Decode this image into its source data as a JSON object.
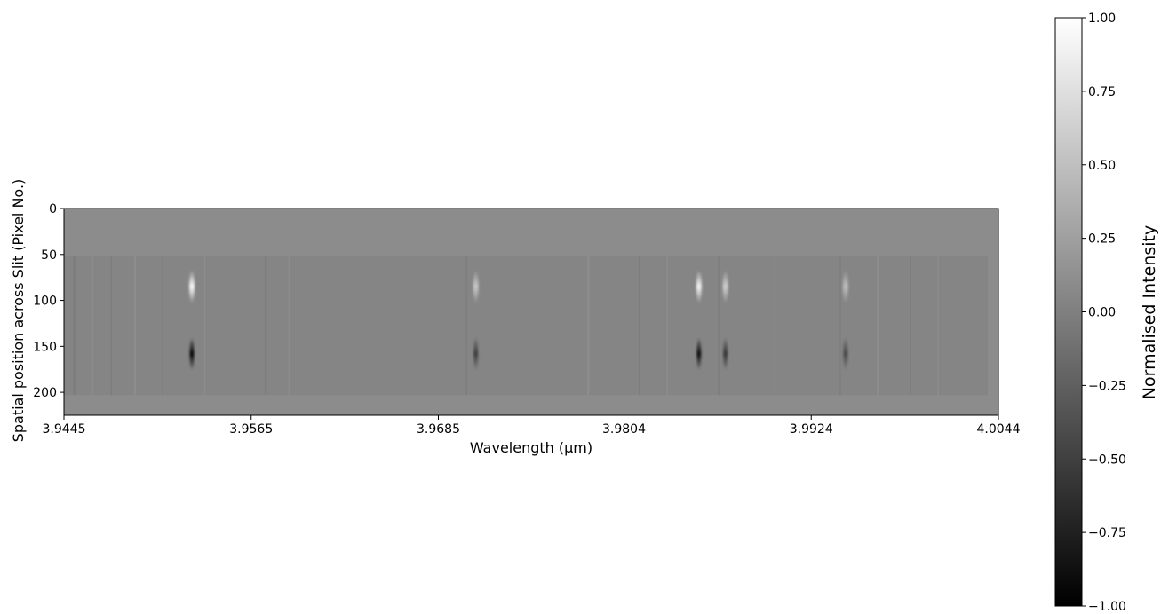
{
  "chart_data": {
    "type": "heatmap",
    "title": "",
    "xlabel": "Wavelength (μm)",
    "ylabel": "Spatial position across Slit (Pixel No.)",
    "x_tick_labels": [
      "3.9445",
      "3.9565",
      "3.9685",
      "3.9804",
      "3.9924",
      "4.0044"
    ],
    "x_ticks": [
      3.9445,
      3.9565,
      3.9685,
      3.9804,
      3.9924,
      4.0044
    ],
    "xlim": [
      3.9445,
      4.0044
    ],
    "y_ticks": [
      0,
      50,
      100,
      150,
      200
    ],
    "y_tick_labels": [
      "0",
      "50",
      "100",
      "150",
      "200"
    ],
    "ylim": [
      225,
      0
    ],
    "y_inverted": true,
    "colormap": "gray",
    "colorbar": {
      "label": "Normalised Intensity",
      "range": [
        -1.0,
        1.0
      ],
      "ticks": [
        1.0,
        0.75,
        0.5,
        0.25,
        0.0,
        -0.25,
        -0.5,
        -0.75,
        -1.0
      ],
      "tick_labels": [
        "1.00",
        "0.75",
        "0.50",
        "0.25",
        "0.00",
        "−0.25",
        "−0.50",
        "−0.75",
        "−1.00"
      ]
    },
    "illuminated_slit_rows": [
      52,
      203
    ],
    "spectral_lines": [
      {
        "wavelength": 3.9527,
        "positive_row": 85,
        "negative_row": 158,
        "strength": 0.95
      },
      {
        "wavelength": 3.9709,
        "positive_row": 85,
        "negative_row": 158,
        "strength": 0.55
      },
      {
        "wavelength": 3.9852,
        "positive_row": 85,
        "negative_row": 158,
        "strength": 0.9
      },
      {
        "wavelength": 3.9869,
        "positive_row": 85,
        "negative_row": 158,
        "strength": 0.6
      },
      {
        "wavelength": 3.9946,
        "positive_row": 85,
        "negative_row": 158,
        "strength": 0.45
      }
    ]
  }
}
